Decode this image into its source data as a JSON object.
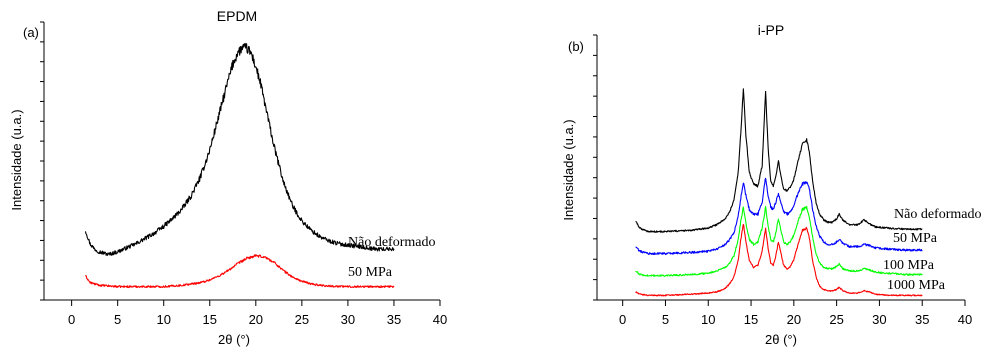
{
  "chart_data": [
    {
      "type": "line",
      "panel_label": "(a)",
      "title": "EPDM",
      "xlabel": "2θ (°)",
      "ylabel": "Intensidade (u.a.)",
      "xlim": [
        -3,
        40
      ],
      "xticks": [
        0,
        5,
        10,
        15,
        20,
        25,
        30,
        35,
        40
      ],
      "ylim": [
        0,
        100
      ],
      "y_tick_labels": false,
      "series": [
        {
          "name": "Não deformado",
          "color": "#000000",
          "noise": 0.9,
          "x": [
            1.5,
            2.0,
            2.5,
            3.0,
            4.0,
            5.0,
            6.0,
            7.0,
            8.0,
            9.0,
            10.0,
            11.0,
            12.0,
            13.0,
            14.0,
            15.0,
            16.0,
            17.0,
            17.5,
            18.0,
            18.5,
            19.0,
            19.5,
            20.0,
            20.5,
            21.0,
            22.0,
            23.0,
            24.0,
            25.0,
            26.0,
            27.0,
            28.0,
            29.0,
            30.0,
            31.0,
            32.0,
            33.0,
            34.0,
            35.0
          ],
          "y": [
            26,
            21,
            19,
            18,
            17,
            18,
            19.5,
            21,
            23,
            25,
            27.5,
            30.5,
            34,
            39,
            46,
            56,
            69,
            82,
            88,
            92,
            94,
            94,
            92,
            87,
            81,
            73,
            57,
            44,
            35,
            29.5,
            26,
            23.5,
            22,
            21,
            20.5,
            20,
            19.5,
            19,
            19,
            19
          ]
        },
        {
          "name": "50 MPa",
          "color": "#ff0000",
          "noise": 0.6,
          "x": [
            1.5,
            2.0,
            3.0,
            5.0,
            8.0,
            10.0,
            12.0,
            14.0,
            15.0,
            16.0,
            17.0,
            18.0,
            19.0,
            20.0,
            21.0,
            22.0,
            23.0,
            24.0,
            25.0,
            26.0,
            27.0,
            28.0,
            30.0,
            33.0,
            35.0
          ],
          "y": [
            9,
            6.5,
            5.5,
            5,
            5,
            5,
            5.5,
            6.5,
            7.5,
            9,
            11,
            13.5,
            15.5,
            16.5,
            16,
            14,
            11,
            8.5,
            7,
            6,
            5.5,
            5.2,
            5,
            5,
            5
          ]
        }
      ],
      "annotations": [
        "Não deformado",
        "50 MPa"
      ]
    },
    {
      "type": "line",
      "panel_label": "(b)",
      "title": "i-PP",
      "xlabel": "2θ (°)",
      "ylabel": "Intensidade (u.a.)",
      "xlim": [
        -3,
        40
      ],
      "xticks": [
        0,
        5,
        10,
        15,
        20,
        25,
        30,
        35,
        40
      ],
      "ylim": [
        0,
        100
      ],
      "y_tick_labels": false,
      "series": [
        {
          "name": "Não deformado",
          "color": "#000000",
          "noise": 0.35,
          "x": [
            1.5,
            2.0,
            3.0,
            5.0,
            8.0,
            10.0,
            11.0,
            12.0,
            12.5,
            13.0,
            13.5,
            13.8,
            14.1,
            14.4,
            14.8,
            15.3,
            15.8,
            16.3,
            16.7,
            17.0,
            17.3,
            17.6,
            17.9,
            18.2,
            18.5,
            18.8,
            19.2,
            19.6,
            20.0,
            20.5,
            21.0,
            21.5,
            21.8,
            22.2,
            22.6,
            23.0,
            23.5,
            24.0,
            24.5,
            25.0,
            25.3,
            25.7,
            26.5,
            27.5,
            28.2,
            28.8,
            29.5,
            31.0,
            33.0,
            35.0
          ],
          "y": [
            34,
            31,
            29.5,
            29.5,
            30,
            31,
            32.5,
            35,
            38,
            43,
            55,
            72,
            91,
            71,
            55,
            50,
            49,
            58,
            90,
            65,
            51,
            49,
            53,
            60,
            53,
            48,
            47,
            48.5,
            52,
            60,
            67,
            69,
            64,
            51,
            42,
            37,
            34.5,
            33.5,
            33.5,
            35,
            37,
            34.5,
            32.5,
            32.5,
            34.5,
            33,
            31.5,
            31,
            30.5,
            30.5
          ]
        },
        {
          "name": "50 MPa",
          "color": "#0000ff",
          "noise": 0.5,
          "x": [
            1.5,
            2.0,
            3.0,
            5.0,
            8.0,
            10.0,
            11.0,
            12.0,
            12.5,
            13.0,
            13.5,
            13.8,
            14.1,
            14.4,
            14.8,
            15.3,
            15.8,
            16.3,
            16.7,
            17.0,
            17.3,
            17.6,
            17.9,
            18.2,
            18.5,
            18.8,
            19.2,
            19.6,
            20.0,
            20.5,
            21.0,
            21.5,
            21.8,
            22.2,
            22.6,
            23.0,
            23.5,
            24.0,
            24.5,
            25.0,
            25.3,
            25.7,
            26.5,
            27.5,
            28.2,
            28.8,
            29.5,
            31.0,
            33.0,
            35.0
          ],
          "y": [
            23,
            21,
            20,
            20,
            20.5,
            21,
            22,
            24,
            26,
            29,
            36,
            44,
            51,
            45,
            39,
            37,
            37,
            42,
            53,
            45,
            40,
            39,
            42,
            46,
            42,
            38,
            37,
            38,
            41,
            46,
            50,
            51,
            48,
            39,
            32,
            27.5,
            25,
            24,
            24,
            25,
            26,
            24.5,
            23,
            23,
            24,
            23.5,
            22.5,
            22,
            21.5,
            21.5
          ]
        },
        {
          "name": "100 MPa",
          "color": "#00ff00",
          "noise": 0.5,
          "x": [
            1.5,
            2.0,
            3.0,
            5.0,
            8.0,
            10.0,
            11.0,
            12.0,
            12.5,
            13.0,
            13.5,
            13.8,
            14.1,
            14.4,
            14.8,
            15.3,
            15.8,
            16.3,
            16.7,
            17.0,
            17.3,
            17.6,
            17.9,
            18.2,
            18.5,
            18.8,
            19.2,
            19.6,
            20.0,
            20.5,
            21.0,
            21.5,
            21.8,
            22.2,
            22.6,
            23.0,
            23.5,
            24.0,
            24.5,
            25.0,
            25.3,
            25.7,
            26.5,
            27.5,
            28.2,
            28.8,
            29.5,
            31.0,
            33.0,
            35.0
          ],
          "y": [
            12.5,
            11,
            10.5,
            10.5,
            11,
            11.5,
            12.5,
            14,
            16,
            19,
            26,
            34,
            40,
            33,
            26,
            24,
            25,
            31,
            40,
            32,
            26,
            25,
            29,
            35,
            30,
            25,
            24,
            25,
            28,
            34,
            39,
            40,
            36,
            27,
            20,
            16,
            14,
            13.5,
            13.5,
            14.5,
            15.5,
            13.5,
            12.5,
            12.5,
            13.5,
            13,
            12,
            11.5,
            11,
            11
          ]
        },
        {
          "name": "1000 MPa",
          "color": "#ff0000",
          "noise": 0.45,
          "x": [
            1.5,
            2.0,
            3.0,
            5.0,
            8.0,
            10.0,
            11.0,
            12.0,
            12.5,
            13.0,
            13.5,
            13.8,
            14.1,
            14.4,
            14.8,
            15.3,
            15.8,
            16.3,
            16.7,
            17.0,
            17.3,
            17.6,
            17.9,
            18.2,
            18.5,
            18.8,
            19.2,
            19.6,
            20.0,
            20.5,
            21.0,
            21.5,
            21.8,
            22.2,
            22.6,
            23.0,
            23.5,
            24.0,
            24.5,
            25.0,
            25.3,
            25.7,
            26.5,
            27.5,
            28.2,
            28.8,
            29.5,
            31.0,
            33.0,
            35.0
          ],
          "y": [
            3.5,
            2.5,
            2,
            2,
            2.5,
            3,
            3.5,
            5,
            7,
            10,
            17,
            26,
            33,
            25,
            17,
            14,
            15,
            21,
            31,
            22,
            16,
            15,
            19,
            25,
            20,
            15,
            13.5,
            14.5,
            17.5,
            24,
            30,
            31,
            27,
            17,
            10,
            6,
            4.5,
            4,
            4,
            4.5,
            5.5,
            4,
            3,
            3,
            4,
            3.5,
            2.5,
            2,
            2,
            2
          ]
        }
      ],
      "annotations": [
        "Não deformado",
        "50 MPa",
        "100 MPa",
        "1000 MPa"
      ]
    }
  ]
}
